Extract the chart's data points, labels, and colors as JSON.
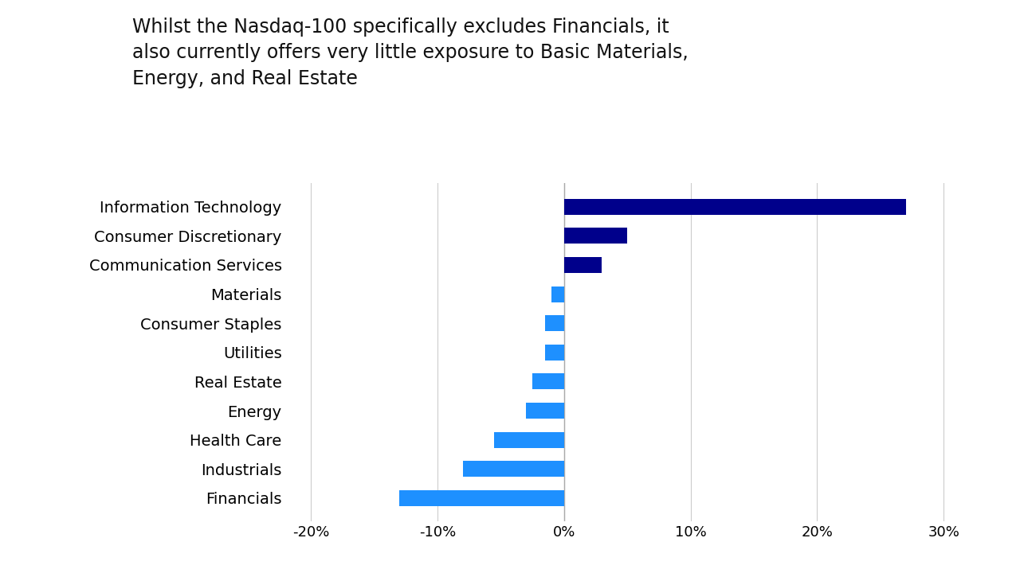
{
  "title": "Whilst the Nasdaq-100 specifically excludes Financials, it\nalso currently offers very little exposure to Basic Materials,\nEnergy, and Real Estate",
  "categories": [
    "Information Technology",
    "Consumer Discretionary",
    "Communication Services",
    "Materials",
    "Consumer Staples",
    "Utilities",
    "Real Estate",
    "Energy",
    "Health Care",
    "Industrials",
    "Financials"
  ],
  "values": [
    27.0,
    5.0,
    3.0,
    -1.0,
    -1.5,
    -1.5,
    -2.5,
    -3.0,
    -5.5,
    -8.0,
    -13.0
  ],
  "color_positive": "#00008B",
  "color_negative": "#1E90FF",
  "xlim": [
    -22,
    32
  ],
  "xticks": [
    -20,
    -10,
    0,
    10,
    20,
    30
  ],
  "xtick_labels": [
    "-20%",
    "-10%",
    "0%",
    "10%",
    "20%",
    "30%"
  ],
  "background_color": "#ffffff",
  "title_fontsize": 17,
  "label_fontsize": 14,
  "tick_fontsize": 13,
  "bar_height": 0.55,
  "grid_color": "#cccccc",
  "zero_line_color": "#aaaaaa"
}
